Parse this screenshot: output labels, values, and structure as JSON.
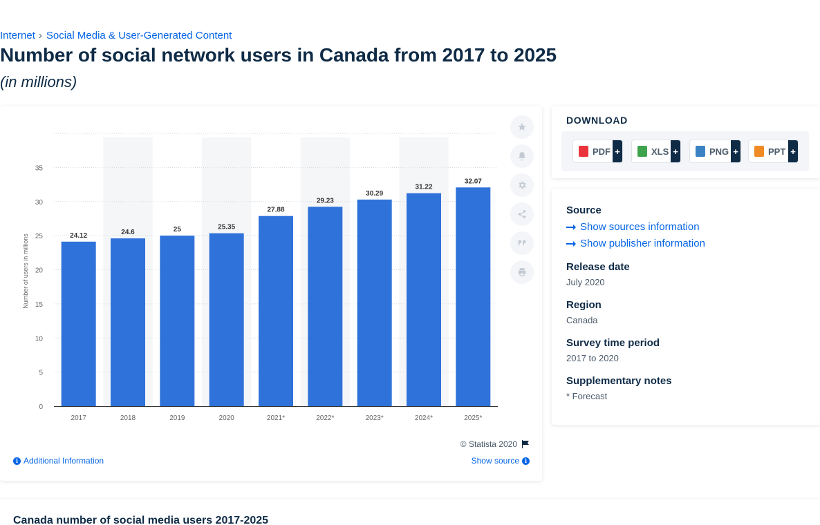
{
  "breadcrumb": {
    "items": [
      "Internet",
      "Social Media & User-Generated Content"
    ]
  },
  "page": {
    "title": "Number of social network users in Canada from 2017 to 2025",
    "subtitle": "(in millions)"
  },
  "chart_data": {
    "type": "bar",
    "categories": [
      "2017",
      "2018",
      "2019",
      "2020",
      "2021*",
      "2022*",
      "2023*",
      "2024*",
      "2025*"
    ],
    "values": [
      24.12,
      24.6,
      25,
      25.35,
      27.88,
      29.23,
      30.29,
      31.22,
      32.07
    ],
    "data_labels": [
      "24.12",
      "24.6",
      "25",
      "25.35",
      "27.88",
      "29.23",
      "30.29",
      "31.22",
      "32.07"
    ],
    "ylabel": "Number of users in millions",
    "xlabel": "",
    "ylim": [
      0,
      40
    ],
    "yticks": [
      0,
      5,
      10,
      15,
      20,
      25,
      30,
      35
    ],
    "grid": true,
    "bar_color": "#2f72da",
    "alt_band_color": "#f5f6f8"
  },
  "chart_footer": {
    "credit": "© Statista 2020",
    "additional_info": "Additional Information",
    "show_source": "Show source"
  },
  "toolbar": {
    "icons": [
      "star-icon",
      "bell-icon",
      "gear-icon",
      "share-icon",
      "quote-icon",
      "print-icon"
    ]
  },
  "download": {
    "heading": "DOWNLOAD",
    "buttons": [
      {
        "label": "PDF",
        "color": "#e8343a"
      },
      {
        "label": "XLS",
        "color": "#3fa34d"
      },
      {
        "label": "PNG",
        "color": "#3b82c4"
      },
      {
        "label": "PPT",
        "color": "#f08a24"
      }
    ],
    "plus": "+"
  },
  "meta": {
    "source_label": "Source",
    "show_sources": "Show sources information",
    "show_publisher": "Show publisher information",
    "release_label": "Release date",
    "release_value": "July 2020",
    "region_label": "Region",
    "region_value": "Canada",
    "survey_label": "Survey time period",
    "survey_value": "2017 to 2020",
    "notes_label": "Supplementary notes",
    "notes_value": "* Forecast"
  },
  "bottom": {
    "title": "Canada number of social media users 2017-2025"
  },
  "colors": {
    "accent": "#0666e5",
    "text": "#0f2b46",
    "bar": "#2f72da"
  }
}
